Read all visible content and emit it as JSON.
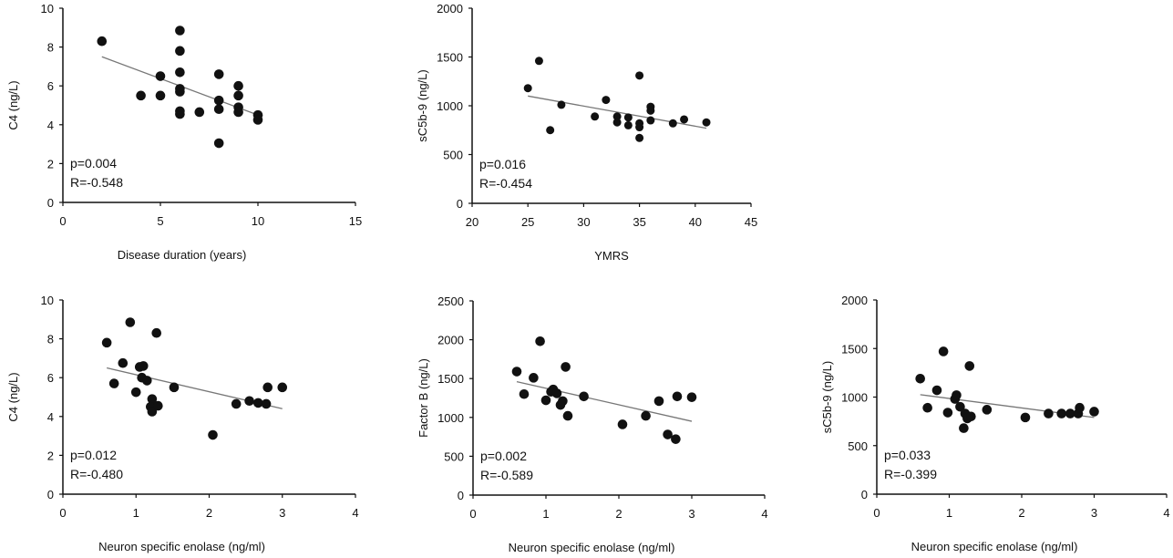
{
  "chart_data": [
    {
      "type": "scatter",
      "xlabel": "Disease duration  (years)",
      "ylabel": "C4  (ng/L)",
      "xlim": [
        0,
        15
      ],
      "ylim": [
        0,
        10
      ],
      "xticks": [
        0,
        5,
        10,
        15
      ],
      "yticks": [
        0,
        2,
        4,
        6,
        8,
        10
      ],
      "annotations": [
        "p=0.004",
        "R=-0.548"
      ],
      "trendline": [
        [
          2,
          7.5
        ],
        [
          10,
          4.5
        ]
      ],
      "points": [
        [
          2,
          8.3
        ],
        [
          4,
          5.5
        ],
        [
          5,
          6.5
        ],
        [
          5,
          5.5
        ],
        [
          6,
          8.85
        ],
        [
          6,
          7.8
        ],
        [
          6,
          6.7
        ],
        [
          6,
          5.85
        ],
        [
          6,
          5.7
        ],
        [
          6,
          4.7
        ],
        [
          6,
          4.55
        ],
        [
          7,
          4.65
        ],
        [
          8,
          6.6
        ],
        [
          8,
          5.25
        ],
        [
          8,
          4.8
        ],
        [
          8,
          3.05
        ],
        [
          9,
          6.0
        ],
        [
          9,
          5.5
        ],
        [
          9,
          4.9
        ],
        [
          9,
          4.65
        ],
        [
          10,
          4.5
        ],
        [
          10,
          4.25
        ]
      ],
      "grid": false
    },
    {
      "type": "scatter",
      "xlabel": "YMRS",
      "ylabel": "sC5b-9 (ng/L)",
      "xlim": [
        20,
        45
      ],
      "ylim": [
        0,
        2000
      ],
      "xticks": [
        20,
        25,
        30,
        35,
        40,
        45
      ],
      "yticks": [
        0,
        500,
        1000,
        1500,
        2000
      ],
      "annotations": [
        "p=0.016",
        "R=-0.454"
      ],
      "trendline": [
        [
          25,
          1100
        ],
        [
          41,
          770
        ]
      ],
      "points": [
        [
          25,
          1180
        ],
        [
          26,
          1460
        ],
        [
          27,
          750
        ],
        [
          28,
          1010
        ],
        [
          31,
          890
        ],
        [
          32,
          1060
        ],
        [
          33,
          890
        ],
        [
          33,
          830
        ],
        [
          34,
          880
        ],
        [
          34,
          800
        ],
        [
          35,
          1310
        ],
        [
          35,
          820
        ],
        [
          35,
          780
        ],
        [
          35,
          670
        ],
        [
          36,
          990
        ],
        [
          36,
          950
        ],
        [
          36,
          850
        ],
        [
          38,
          820
        ],
        [
          39,
          860
        ],
        [
          41,
          830
        ]
      ],
      "grid": false
    },
    {
      "type": "scatter",
      "xlabel": "Neuron specific enolase (ng/ml)",
      "ylabel": "C4 (ng/L)",
      "xlim": [
        0,
        4
      ],
      "ylim": [
        0,
        10
      ],
      "xticks": [
        0,
        1,
        2,
        3,
        4
      ],
      "yticks": [
        0,
        2,
        4,
        6,
        8,
        10
      ],
      "annotations": [
        "p=0.012",
        "R=-0.480"
      ],
      "trendline": [
        [
          0.6,
          6.5
        ],
        [
          3.0,
          4.4
        ]
      ],
      "points": [
        [
          0.6,
          7.8
        ],
        [
          0.7,
          5.7
        ],
        [
          0.82,
          6.75
        ],
        [
          0.92,
          8.85
        ],
        [
          1.0,
          5.25
        ],
        [
          1.05,
          6.55
        ],
        [
          1.1,
          6.6
        ],
        [
          1.08,
          6.0
        ],
        [
          1.15,
          5.85
        ],
        [
          1.22,
          4.9
        ],
        [
          1.2,
          4.5
        ],
        [
          1.22,
          4.25
        ],
        [
          1.3,
          4.55
        ],
        [
          1.28,
          8.3
        ],
        [
          1.52,
          5.5
        ],
        [
          2.05,
          3.05
        ],
        [
          2.37,
          4.65
        ],
        [
          2.55,
          4.8
        ],
        [
          2.67,
          4.7
        ],
        [
          2.78,
          4.65
        ],
        [
          2.8,
          5.5
        ],
        [
          3.0,
          5.5
        ]
      ],
      "grid": false
    },
    {
      "type": "scatter",
      "xlabel": "Neuron specific enolase (ng/ml)",
      "ylabel": "Factor B  (ng/L)",
      "xlim": [
        0,
        4
      ],
      "ylim": [
        0,
        2500
      ],
      "xticks": [
        0,
        1,
        2,
        3,
        4
      ],
      "yticks": [
        0,
        500,
        1000,
        1500,
        2000,
        2500
      ],
      "annotations": [
        "p=0.002",
        "R=-0.589"
      ],
      "trendline": [
        [
          0.6,
          1460
        ],
        [
          3.0,
          950
        ]
      ],
      "points": [
        [
          0.6,
          1590
        ],
        [
          0.7,
          1300
        ],
        [
          0.83,
          1510
        ],
        [
          0.92,
          1980
        ],
        [
          1.0,
          1220
        ],
        [
          1.07,
          1330
        ],
        [
          1.1,
          1360
        ],
        [
          1.15,
          1310
        ],
        [
          1.2,
          1160
        ],
        [
          1.23,
          1210
        ],
        [
          1.27,
          1650
        ],
        [
          1.3,
          1020
        ],
        [
          1.52,
          1270
        ],
        [
          2.05,
          910
        ],
        [
          2.37,
          1020
        ],
        [
          2.55,
          1210
        ],
        [
          2.67,
          780
        ],
        [
          2.78,
          720
        ],
        [
          2.8,
          1270
        ],
        [
          3.0,
          1260
        ]
      ],
      "grid": false
    },
    {
      "type": "scatter",
      "xlabel": "Neuron specific enolase (ng/ml)",
      "ylabel": "sC5b-9  (ng/L)",
      "xlim": [
        0,
        4
      ],
      "ylim": [
        0,
        2000
      ],
      "xticks": [
        0,
        1,
        2,
        3,
        4
      ],
      "yticks": [
        0,
        500,
        1000,
        1500,
        2000
      ],
      "annotations": [
        "p=0.033",
        "R=-0.399"
      ],
      "trendline": [
        [
          0.6,
          1025
        ],
        [
          3.0,
          790
        ]
      ],
      "points": [
        [
          0.6,
          1190
        ],
        [
          0.7,
          890
        ],
        [
          0.83,
          1070
        ],
        [
          0.92,
          1470
        ],
        [
          0.98,
          840
        ],
        [
          1.08,
          980
        ],
        [
          1.1,
          1020
        ],
        [
          1.15,
          900
        ],
        [
          1.22,
          830
        ],
        [
          1.2,
          680
        ],
        [
          1.25,
          780
        ],
        [
          1.28,
          1320
        ],
        [
          1.3,
          800
        ],
        [
          1.52,
          870
        ],
        [
          2.05,
          790
        ],
        [
          2.37,
          830
        ],
        [
          2.55,
          830
        ],
        [
          2.67,
          830
        ],
        [
          2.78,
          830
        ],
        [
          2.8,
          890
        ],
        [
          3.0,
          850
        ]
      ],
      "grid": false
    }
  ],
  "colors": {
    "points": "#111111",
    "trendline": "#777777",
    "axes": "#111111"
  }
}
